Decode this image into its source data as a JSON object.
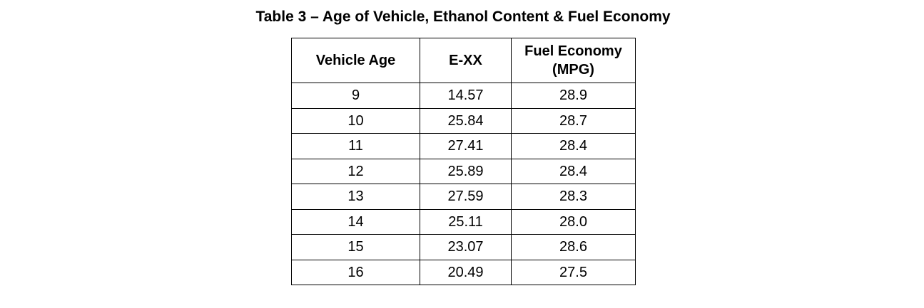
{
  "title": "Table 3 – Age of Vehicle, Ethanol Content & Fuel Economy",
  "table": {
    "headers": {
      "vehicle_age": "Vehicle Age",
      "exx": "E-XX",
      "fuel_economy_line1": "Fuel Economy",
      "fuel_economy_line2": "(MPG)"
    },
    "rows": [
      {
        "age": "9",
        "exx": "14.57",
        "mpg": "28.9"
      },
      {
        "age": "10",
        "exx": "25.84",
        "mpg": "28.7"
      },
      {
        "age": "11",
        "exx": "27.41",
        "mpg": "28.4"
      },
      {
        "age": "12",
        "exx": "25.89",
        "mpg": "28.4"
      },
      {
        "age": "13",
        "exx": "27.59",
        "mpg": "28.3"
      },
      {
        "age": "14",
        "exx": "25.11",
        "mpg": "28.0"
      },
      {
        "age": "15",
        "exx": "23.07",
        "mpg": "28.6"
      },
      {
        "age": "16",
        "exx": "20.49",
        "mpg": "27.5"
      }
    ]
  },
  "chart_data": {
    "type": "table",
    "title": "Table 3 – Age of Vehicle, Ethanol Content & Fuel Economy",
    "columns": [
      "Vehicle Age",
      "E-XX",
      "Fuel Economy (MPG)"
    ],
    "rows": [
      [
        9,
        14.57,
        28.9
      ],
      [
        10,
        25.84,
        28.7
      ],
      [
        11,
        27.41,
        28.4
      ],
      [
        12,
        25.89,
        28.4
      ],
      [
        13,
        27.59,
        28.3
      ],
      [
        14,
        25.11,
        28.0
      ],
      [
        15,
        23.07,
        28.6
      ],
      [
        16,
        20.49,
        27.5
      ]
    ]
  }
}
